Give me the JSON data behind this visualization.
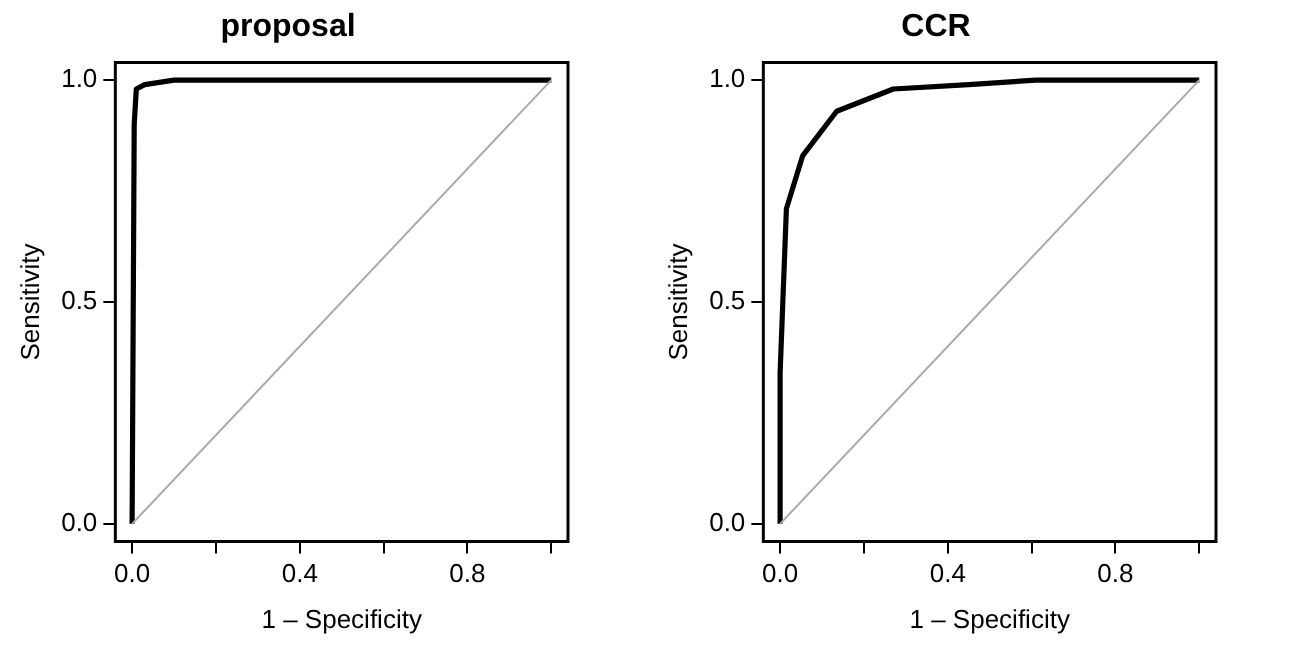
{
  "chart_data": [
    {
      "type": "line",
      "title": "proposal",
      "xlabel": "1 – Specificity",
      "ylabel": "Sensitivity",
      "xlim": [
        -0.04,
        1.04
      ],
      "ylim": [
        -0.04,
        1.04
      ],
      "xticks": [
        {
          "value": 0,
          "label": "0.0"
        },
        {
          "value": 0.2,
          "label": null
        },
        {
          "value": 0.4,
          "label": "0.4"
        },
        {
          "value": 0.6,
          "label": null
        },
        {
          "value": 0.8,
          "label": "0.8"
        },
        {
          "value": 1,
          "label": null
        }
      ],
      "yticks": [
        {
          "value": 0,
          "label": "0.0"
        },
        {
          "value": 0.5,
          "label": "0.5"
        },
        {
          "value": 1,
          "label": "1.0"
        }
      ],
      "grid": false,
      "legend": false,
      "marker": "none",
      "line_style": "solid",
      "series": [
        {
          "color": "#aaaaaa",
          "x": [
            0,
            1
          ],
          "values": [
            0,
            1
          ]
        },
        {
          "color": "#000000",
          "x": [
            0,
            0.005,
            0.01,
            0.03,
            0.1,
            1
          ],
          "values": [
            0,
            0.9,
            0.98,
            0.99,
            1,
            1
          ]
        }
      ]
    },
    {
      "type": "line",
      "title": "CCR",
      "xlabel": "1 – Specificity",
      "ylabel": "Sensitivity",
      "xlim": [
        -0.04,
        1.04
      ],
      "ylim": [
        -0.04,
        1.04
      ],
      "xticks": [
        {
          "value": 0,
          "label": "0.0"
        },
        {
          "value": 0.2,
          "label": null
        },
        {
          "value": 0.4,
          "label": "0.4"
        },
        {
          "value": 0.6,
          "label": null
        },
        {
          "value": 0.8,
          "label": "0.8"
        },
        {
          "value": 1,
          "label": null
        }
      ],
      "yticks": [
        {
          "value": 0,
          "label": "0.0"
        },
        {
          "value": 0.5,
          "label": "0.5"
        },
        {
          "value": 1,
          "label": "1.0"
        }
      ],
      "grid": false,
      "legend": false,
      "marker": "none",
      "line_style": "solid",
      "series": [
        {
          "color": "#aaaaaa",
          "x": [
            0,
            1
          ],
          "values": [
            0,
            1
          ]
        },
        {
          "color": "#000000",
          "x": [
            0,
            0,
            0.015,
            0.054,
            0.135,
            0.27,
            0.45,
            0.61,
            1
          ],
          "values": [
            0,
            0.34,
            0.71,
            0.83,
            0.93,
            0.98,
            0.99,
            1,
            1
          ]
        }
      ]
    }
  ]
}
